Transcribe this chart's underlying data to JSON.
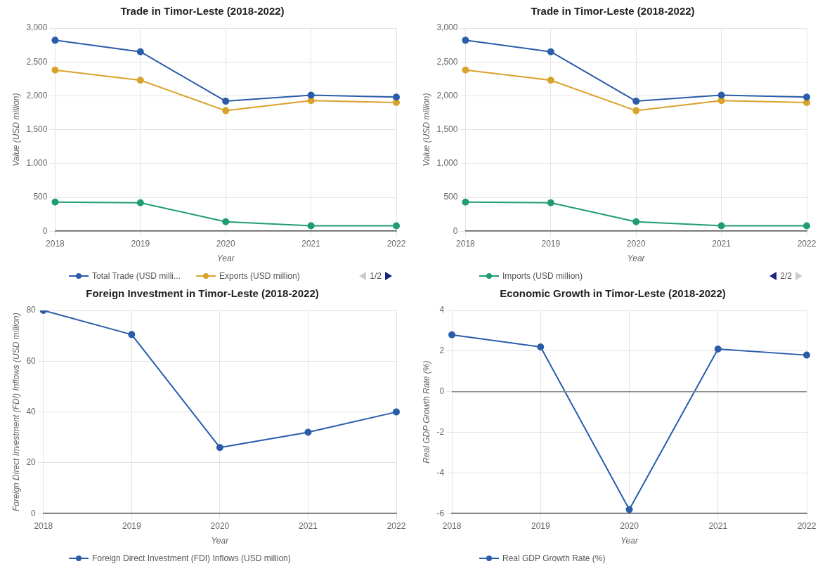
{
  "chart_data": [
    {
      "type": "line",
      "title": "Trade in Timor-Leste (2018-2022)",
      "xlabel": "Year",
      "ylabel": "Value (USD million)",
      "categories": [
        "2018",
        "2019",
        "2020",
        "2021",
        "2022"
      ],
      "series": [
        {
          "name": "Total Trade (USD milli...",
          "color": "#2a5caa",
          "values": [
            2820,
            2650,
            1920,
            2010,
            1980
          ]
        },
        {
          "name": "Exports (USD million)",
          "color": "#d9a22b",
          "values": [
            2380,
            2230,
            1780,
            1930,
            1900
          ]
        },
        {
          "color": "#1e9c74",
          "values": [
            430,
            420,
            140,
            80,
            80
          ]
        }
      ],
      "ylim": [
        0,
        3000
      ],
      "yticks": [
        0,
        500,
        {
          "value": 1000,
          "label": "1,000"
        },
        {
          "value": 1500,
          "label": "1,500"
        },
        {
          "value": 2000,
          "label": "2,000"
        },
        {
          "value": 2500,
          "label": "2,500"
        },
        {
          "value": 3000,
          "label": "3,000"
        }
      ],
      "grid": true,
      "legend": "bottom",
      "marker": "circle",
      "line_style": "solid",
      "annotations": [
        "1/2"
      ]
    },
    {
      "type": "line",
      "title": "Trade in Timor-Leste (2018-2022)",
      "xlabel": "Year",
      "ylabel": "Value (USD million)",
      "categories": [
        "2018",
        "2019",
        "2020",
        "2021",
        "2022"
      ],
      "series": [
        {
          "color": "#2a5caa",
          "values": [
            2820,
            2650,
            1920,
            2010,
            1980
          ]
        },
        {
          "color": "#d9a22b",
          "values": [
            2380,
            2230,
            1780,
            1930,
            1900
          ]
        },
        {
          "name": "Imports (USD million)",
          "color": "#1e9c74",
          "values": [
            430,
            420,
            140,
            80,
            80
          ]
        }
      ],
      "ylim": [
        0,
        3000
      ],
      "yticks": [
        0,
        500,
        {
          "value": 1000,
          "label": "1,000"
        },
        {
          "value": 1500,
          "label": "1,500"
        },
        {
          "value": 2000,
          "label": "2,000"
        },
        {
          "value": 2500,
          "label": "2,500"
        },
        {
          "value": 3000,
          "label": "3,000"
        }
      ],
      "grid": true,
      "legend": "bottom",
      "marker": "circle",
      "line_style": "solid",
      "annotations": [
        "2/2"
      ]
    },
    {
      "type": "line",
      "title": "Foreign Investment in Timor-Leste (2018-2022)",
      "xlabel": "Year",
      "ylabel": "Foreign Direct Investment (FDI) Inflows (USD million)",
      "categories": [
        "2018",
        "2019",
        "2020",
        "2021",
        "2022"
      ],
      "series": [
        {
          "name": "Foreign Direct Investment (FDI) Inflows (USD million)",
          "color": "#2a5caa",
          "values": [
            80,
            70.5,
            26,
            32,
            40
          ]
        }
      ],
      "ylim": [
        0,
        80
      ],
      "yticks": [
        0,
        20,
        40,
        60,
        80
      ],
      "grid": true,
      "legend": "bottom",
      "marker": "circle",
      "line_style": "solid"
    },
    {
      "type": "line",
      "title": "Economic Growth in Timor-Leste (2018-2022)",
      "xlabel": "Year",
      "ylabel": "Real GDP Growth Rate (%)",
      "categories": [
        "2018",
        "2019",
        "2020",
        "2021",
        "2022"
      ],
      "series": [
        {
          "name": "Real GDP Growth Rate (%)",
          "color": "#2a5caa",
          "values": [
            2.8,
            2.2,
            -5.8,
            2.1,
            1.8
          ]
        }
      ],
      "ylim": [
        -6,
        4
      ],
      "yticks": [
        -6,
        -4,
        -2,
        0,
        2,
        4
      ],
      "grid": true,
      "legend": "bottom",
      "marker": "circle",
      "line_style": "solid",
      "ref_lines": [
        {
          "axis": "y",
          "value": 0,
          "color": "#888888"
        }
      ]
    }
  ]
}
